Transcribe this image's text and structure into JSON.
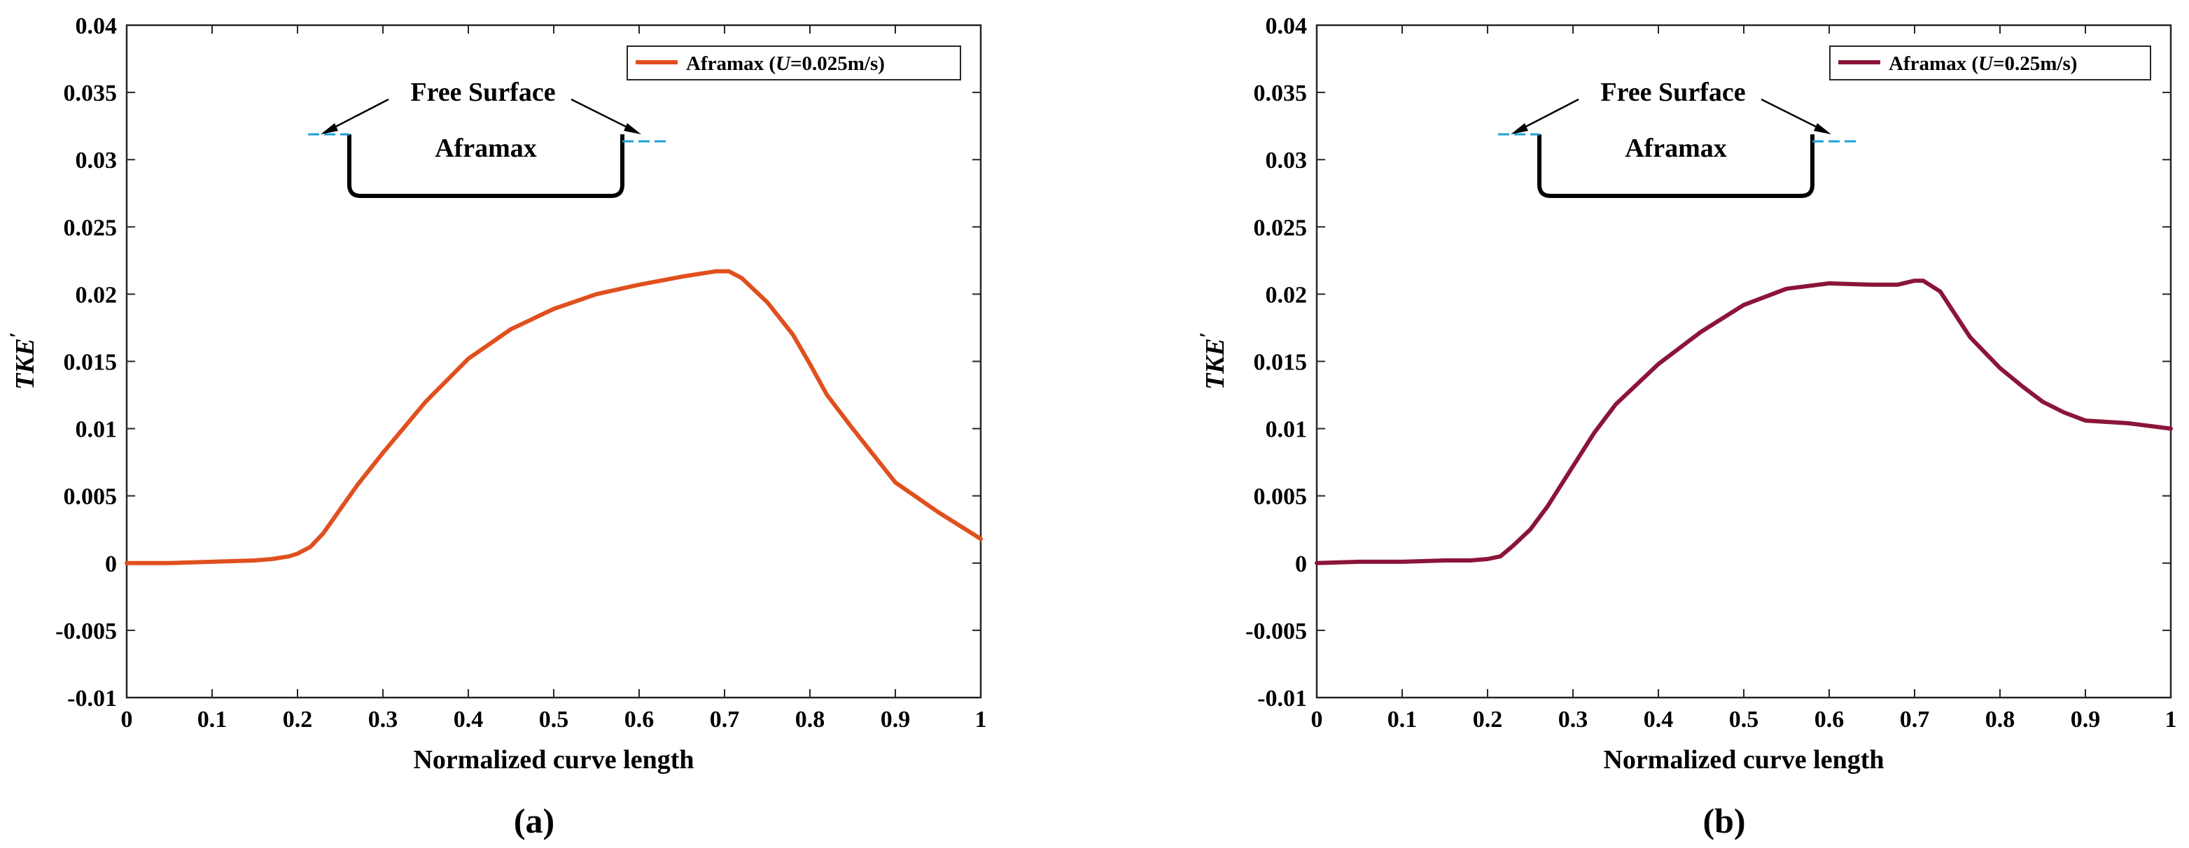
{
  "chart_data": [
    {
      "type": "line",
      "caption": "(a)",
      "xlabel": "Normalized curve length",
      "ylabel": "TKE",
      "ylabel_prime": "′",
      "xlim": [
        0,
        1
      ],
      "ylim": [
        -0.01,
        0.04
      ],
      "xticks": [
        0,
        0.1,
        0.2,
        0.3,
        0.4,
        0.5,
        0.6,
        0.7,
        0.8,
        0.9,
        1
      ],
      "xtick_labels": [
        "0",
        "0.1",
        "0.2",
        "0.3",
        "0.4",
        "0.5",
        "0.6",
        "0.7",
        "0.8",
        "0.9",
        "1"
      ],
      "yticks": [
        -0.01,
        -0.005,
        0,
        0.005,
        0.01,
        0.015,
        0.02,
        0.025,
        0.03,
        0.035,
        0.04
      ],
      "ytick_labels": [
        "-0.01",
        "-0.005",
        "0",
        "0.005",
        "0.01",
        "0.015",
        "0.02",
        "0.025",
        "0.03",
        "0.035",
        "0.04"
      ],
      "grid": false,
      "legend_position": "top-right",
      "legend": {
        "prefix": "Aframax (",
        "var": "U",
        "suffix": "=0.025m/s)"
      },
      "inset": {
        "label_free_surface": "Free Surface",
        "label_hull": "Aframax"
      },
      "series": [
        {
          "name": "Aframax (U=0.025m/s)",
          "color": "#E0501E",
          "x": [
            0,
            0.05,
            0.1,
            0.15,
            0.17,
            0.19,
            0.2,
            0.215,
            0.23,
            0.25,
            0.27,
            0.3,
            0.35,
            0.4,
            0.45,
            0.5,
            0.55,
            0.6,
            0.65,
            0.69,
            0.705,
            0.72,
            0.75,
            0.78,
            0.8,
            0.82,
            0.85,
            0.9,
            0.95,
            1.0
          ],
          "y": [
            0,
            0,
            0.0001,
            0.0002,
            0.0003,
            0.0005,
            0.0007,
            0.0012,
            0.0022,
            0.004,
            0.0058,
            0.0082,
            0.012,
            0.0152,
            0.0174,
            0.0189,
            0.02,
            0.0207,
            0.0213,
            0.0217,
            0.0217,
            0.0212,
            0.0194,
            0.017,
            0.0148,
            0.0125,
            0.01,
            0.006,
            0.0038,
            0.0018
          ]
        }
      ]
    },
    {
      "type": "line",
      "caption": "(b)",
      "xlabel": "Normalized curve length",
      "ylabel": "TKE",
      "ylabel_prime": "′",
      "xlim": [
        0,
        1
      ],
      "ylim": [
        -0.01,
        0.04
      ],
      "xticks": [
        0,
        0.1,
        0.2,
        0.3,
        0.4,
        0.5,
        0.6,
        0.7,
        0.8,
        0.9,
        1
      ],
      "xtick_labels": [
        "0",
        "0.1",
        "0.2",
        "0.3",
        "0.4",
        "0.5",
        "0.6",
        "0.7",
        "0.8",
        "0.9",
        "1"
      ],
      "yticks": [
        -0.01,
        -0.005,
        0,
        0.005,
        0.01,
        0.015,
        0.02,
        0.025,
        0.03,
        0.035,
        0.04
      ],
      "ytick_labels": [
        "-0.01",
        "-0.005",
        "0",
        "0.005",
        "0.01",
        "0.015",
        "0.02",
        "0.025",
        "0.03",
        "0.035",
        "0.04"
      ],
      "grid": false,
      "legend_position": "top-right",
      "legend": {
        "prefix": "Aframax (",
        "var": "U",
        "suffix": "=0.25m/s)"
      },
      "inset": {
        "label_free_surface": "Free Surface",
        "label_hull": "Aframax"
      },
      "series": [
        {
          "name": "Aframax (U=0.25m/s)",
          "color": "#8B1538",
          "x": [
            0,
            0.05,
            0.1,
            0.15,
            0.18,
            0.2,
            0.215,
            0.23,
            0.25,
            0.27,
            0.3,
            0.325,
            0.35,
            0.4,
            0.45,
            0.5,
            0.55,
            0.6,
            0.65,
            0.68,
            0.7,
            0.71,
            0.73,
            0.765,
            0.8,
            0.825,
            0.85,
            0.875,
            0.9,
            0.95,
            1.0
          ],
          "y": [
            0,
            0.0001,
            0.0001,
            0.0002,
            0.0002,
            0.0003,
            0.0005,
            0.0013,
            0.0025,
            0.0042,
            0.0072,
            0.0097,
            0.0118,
            0.0148,
            0.0172,
            0.0192,
            0.0204,
            0.0208,
            0.0207,
            0.0207,
            0.021,
            0.021,
            0.0202,
            0.0168,
            0.0145,
            0.0132,
            0.012,
            0.0112,
            0.0106,
            0.0104,
            0.01
          ]
        }
      ]
    }
  ]
}
